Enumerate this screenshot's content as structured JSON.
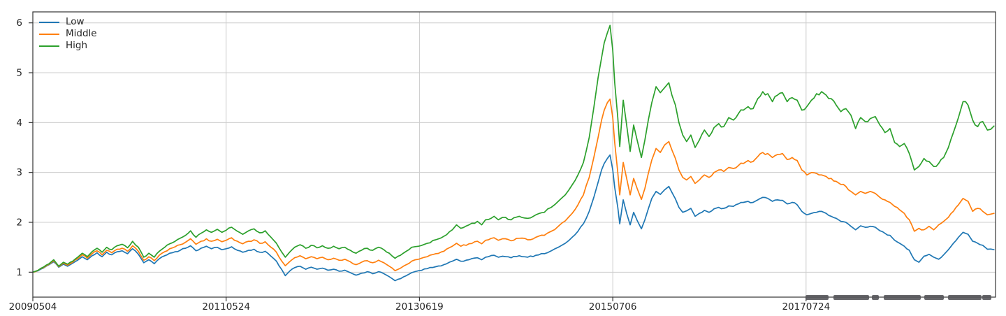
{
  "chart_data": {
    "type": "line",
    "title": "",
    "xlabel": "",
    "ylabel": "",
    "grid": true,
    "legend_position": "upper-left",
    "legend_frame": false,
    "x_axis": {
      "lim": [
        0,
        2490
      ],
      "ticks": [
        {
          "pos": 0,
          "label": "20090504"
        },
        {
          "pos": 500,
          "label": "20110524"
        },
        {
          "pos": 1000,
          "label": "20130619"
        },
        {
          "pos": 1500,
          "label": "20150706"
        },
        {
          "pos": 2000,
          "label": "20170724"
        }
      ]
    },
    "y_axis": {
      "lim": [
        0.5,
        6.22
      ],
      "ticks": [
        {
          "pos": 1,
          "label": "1"
        },
        {
          "pos": 2,
          "label": "2"
        },
        {
          "pos": 3,
          "label": "3"
        },
        {
          "pos": 4,
          "label": "4"
        },
        {
          "pos": 5,
          "label": "5"
        },
        {
          "pos": 6,
          "label": "6"
        }
      ]
    },
    "style": {
      "grid_color": "#cccccc",
      "spine_color": "#333333",
      "text_color": "#262626",
      "line_width": 1.7,
      "noise_amp_pct": 1.1
    },
    "x": [
      0,
      14,
      27,
      42,
      54,
      67,
      79,
      90,
      103,
      116,
      128,
      141,
      153,
      166,
      179,
      191,
      204,
      218,
      231,
      245,
      258,
      273,
      287,
      300,
      314,
      327,
      341,
      354,
      368,
      381,
      395,
      408,
      422,
      435,
      449,
      462,
      477,
      489,
      500,
      514,
      529,
      543,
      558,
      572,
      587,
      601,
      616,
      630,
      644,
      653,
      664,
      677,
      691,
      706,
      720,
      735,
      749,
      763,
      778,
      792,
      807,
      821,
      836,
      850,
      865,
      879,
      894,
      908,
      922,
      937,
      951,
      966,
      980,
      998,
      1020,
      1042,
      1063,
      1085,
      1096,
      1107,
      1128,
      1150,
      1161,
      1171,
      1193,
      1204,
      1215,
      1237,
      1258,
      1280,
      1301,
      1323,
      1341,
      1359,
      1377,
      1395,
      1410,
      1424,
      1439,
      1451,
      1462,
      1471,
      1478,
      1486,
      1493,
      1500,
      1505,
      1513,
      1518,
      1527,
      1536,
      1545,
      1554,
      1563,
      1574,
      1583,
      1592,
      1601,
      1612,
      1623,
      1634,
      1645,
      1653,
      1662,
      1671,
      1681,
      1691,
      1702,
      1713,
      1724,
      1737,
      1749,
      1762,
      1774,
      1787,
      1800,
      1812,
      1825,
      1838,
      1850,
      1863,
      1875,
      1888,
      1901,
      1913,
      1926,
      1939,
      1951,
      1964,
      1977,
      1989,
      2002,
      2014,
      2027,
      2040,
      2052,
      2065,
      2078,
      2090,
      2103,
      2116,
      2128,
      2141,
      2153,
      2166,
      2179,
      2191,
      2204,
      2217,
      2229,
      2242,
      2254,
      2267,
      2280,
      2292,
      2305,
      2318,
      2330,
      2343,
      2356,
      2368,
      2381,
      2394,
      2406,
      2419,
      2431,
      2444,
      2457,
      2469,
      2486
    ],
    "series": [
      {
        "name": "Low",
        "color": "#1f77b4",
        "values": [
          1.0,
          1.03,
          1.08,
          1.15,
          1.21,
          1.1,
          1.16,
          1.12,
          1.18,
          1.24,
          1.31,
          1.25,
          1.33,
          1.39,
          1.31,
          1.4,
          1.35,
          1.41,
          1.43,
          1.37,
          1.47,
          1.36,
          1.19,
          1.25,
          1.17,
          1.27,
          1.33,
          1.38,
          1.41,
          1.44,
          1.48,
          1.53,
          1.43,
          1.48,
          1.52,
          1.47,
          1.5,
          1.45,
          1.47,
          1.51,
          1.44,
          1.4,
          1.44,
          1.46,
          1.4,
          1.42,
          1.32,
          1.22,
          1.05,
          0.93,
          1.02,
          1.09,
          1.12,
          1.06,
          1.1,
          1.06,
          1.08,
          1.04,
          1.06,
          1.02,
          1.04,
          0.99,
          0.94,
          0.98,
          1.01,
          0.97,
          1.01,
          0.97,
          0.91,
          0.83,
          0.87,
          0.93,
          0.99,
          1.03,
          1.07,
          1.11,
          1.15,
          1.22,
          1.26,
          1.22,
          1.25,
          1.29,
          1.25,
          1.3,
          1.34,
          1.3,
          1.32,
          1.29,
          1.33,
          1.3,
          1.34,
          1.37,
          1.43,
          1.5,
          1.58,
          1.7,
          1.82,
          1.97,
          2.22,
          2.5,
          2.8,
          3.05,
          3.18,
          3.28,
          3.35,
          3.05,
          2.7,
          2.3,
          1.97,
          2.45,
          2.18,
          1.95,
          2.2,
          2.04,
          1.87,
          2.05,
          2.27,
          2.48,
          2.62,
          2.56,
          2.65,
          2.72,
          2.6,
          2.47,
          2.3,
          2.2,
          2.23,
          2.28,
          2.12,
          2.18,
          2.24,
          2.2,
          2.27,
          2.3,
          2.28,
          2.33,
          2.32,
          2.37,
          2.4,
          2.42,
          2.4,
          2.45,
          2.5,
          2.48,
          2.42,
          2.45,
          2.44,
          2.37,
          2.4,
          2.35,
          2.22,
          2.15,
          2.18,
          2.2,
          2.22,
          2.18,
          2.12,
          2.08,
          2.02,
          2.0,
          1.92,
          1.85,
          1.93,
          1.9,
          1.92,
          1.9,
          1.83,
          1.78,
          1.74,
          1.64,
          1.58,
          1.52,
          1.44,
          1.25,
          1.2,
          1.32,
          1.36,
          1.3,
          1.26,
          1.35,
          1.45,
          1.58,
          1.7,
          1.8,
          1.76,
          1.62,
          1.58,
          1.54,
          1.46,
          1.45
        ]
      },
      {
        "name": "Middle",
        "color": "#ff7f0e",
        "values": [
          1.0,
          1.04,
          1.09,
          1.16,
          1.23,
          1.11,
          1.18,
          1.14,
          1.2,
          1.27,
          1.35,
          1.28,
          1.37,
          1.43,
          1.35,
          1.44,
          1.39,
          1.46,
          1.48,
          1.42,
          1.53,
          1.42,
          1.24,
          1.31,
          1.23,
          1.34,
          1.41,
          1.47,
          1.51,
          1.55,
          1.6,
          1.67,
          1.56,
          1.62,
          1.67,
          1.62,
          1.66,
          1.61,
          1.64,
          1.69,
          1.62,
          1.57,
          1.62,
          1.65,
          1.58,
          1.61,
          1.5,
          1.4,
          1.22,
          1.13,
          1.21,
          1.29,
          1.33,
          1.27,
          1.31,
          1.27,
          1.3,
          1.25,
          1.28,
          1.24,
          1.26,
          1.21,
          1.15,
          1.2,
          1.23,
          1.19,
          1.24,
          1.19,
          1.12,
          1.03,
          1.08,
          1.15,
          1.22,
          1.26,
          1.31,
          1.37,
          1.42,
          1.52,
          1.58,
          1.52,
          1.57,
          1.62,
          1.57,
          1.64,
          1.69,
          1.64,
          1.67,
          1.63,
          1.68,
          1.65,
          1.7,
          1.74,
          1.82,
          1.92,
          2.03,
          2.18,
          2.35,
          2.55,
          2.9,
          3.3,
          3.7,
          4.05,
          4.25,
          4.4,
          4.47,
          4.1,
          3.6,
          3.0,
          2.55,
          3.2,
          2.88,
          2.55,
          2.88,
          2.68,
          2.46,
          2.68,
          2.98,
          3.25,
          3.48,
          3.4,
          3.55,
          3.62,
          3.45,
          3.28,
          3.05,
          2.9,
          2.85,
          2.92,
          2.78,
          2.85,
          2.95,
          2.9,
          3.0,
          3.05,
          3.02,
          3.1,
          3.08,
          3.14,
          3.18,
          3.24,
          3.22,
          3.32,
          3.4,
          3.38,
          3.3,
          3.36,
          3.38,
          3.26,
          3.3,
          3.24,
          3.05,
          2.95,
          3.0,
          2.98,
          2.95,
          2.92,
          2.88,
          2.82,
          2.76,
          2.72,
          2.62,
          2.55,
          2.62,
          2.58,
          2.62,
          2.58,
          2.5,
          2.45,
          2.4,
          2.32,
          2.25,
          2.18,
          2.05,
          1.82,
          1.88,
          1.85,
          1.92,
          1.85,
          1.95,
          2.02,
          2.1,
          2.22,
          2.35,
          2.48,
          2.42,
          2.22,
          2.28,
          2.22,
          2.15,
          2.18
        ]
      },
      {
        "name": "High",
        "color": "#2ca02c",
        "values": [
          1.0,
          1.04,
          1.1,
          1.17,
          1.25,
          1.12,
          1.2,
          1.16,
          1.22,
          1.3,
          1.38,
          1.31,
          1.41,
          1.48,
          1.4,
          1.5,
          1.45,
          1.53,
          1.56,
          1.49,
          1.62,
          1.5,
          1.3,
          1.38,
          1.3,
          1.42,
          1.5,
          1.57,
          1.62,
          1.68,
          1.74,
          1.83,
          1.7,
          1.78,
          1.85,
          1.8,
          1.86,
          1.8,
          1.84,
          1.9,
          1.82,
          1.76,
          1.83,
          1.87,
          1.79,
          1.83,
          1.7,
          1.58,
          1.4,
          1.3,
          1.4,
          1.5,
          1.55,
          1.48,
          1.54,
          1.49,
          1.53,
          1.48,
          1.52,
          1.47,
          1.5,
          1.44,
          1.38,
          1.44,
          1.48,
          1.44,
          1.5,
          1.45,
          1.38,
          1.28,
          1.34,
          1.42,
          1.5,
          1.52,
          1.58,
          1.65,
          1.72,
          1.85,
          1.95,
          1.88,
          1.95,
          2.02,
          1.95,
          2.05,
          2.12,
          2.05,
          2.1,
          2.05,
          2.12,
          2.08,
          2.15,
          2.2,
          2.3,
          2.42,
          2.55,
          2.75,
          2.95,
          3.2,
          3.7,
          4.3,
          4.9,
          5.3,
          5.6,
          5.8,
          5.95,
          5.45,
          4.8,
          4.1,
          3.52,
          4.45,
          3.95,
          3.42,
          3.95,
          3.65,
          3.3,
          3.65,
          4.05,
          4.4,
          4.72,
          4.6,
          4.7,
          4.8,
          4.55,
          4.35,
          4.0,
          3.75,
          3.62,
          3.75,
          3.5,
          3.65,
          3.85,
          3.72,
          3.9,
          3.98,
          3.92,
          4.1,
          4.05,
          4.18,
          4.25,
          4.32,
          4.28,
          4.48,
          4.62,
          4.58,
          4.42,
          4.55,
          4.6,
          4.42,
          4.5,
          4.45,
          4.25,
          4.32,
          4.45,
          4.58,
          4.62,
          4.55,
          4.48,
          4.35,
          4.22,
          4.28,
          4.15,
          3.88,
          4.1,
          4.02,
          4.08,
          4.12,
          3.95,
          3.8,
          3.88,
          3.6,
          3.52,
          3.58,
          3.38,
          3.05,
          3.12,
          3.28,
          3.22,
          3.12,
          3.18,
          3.3,
          3.5,
          3.8,
          4.1,
          4.42,
          4.35,
          4.05,
          3.92,
          4.02,
          3.85,
          3.93
        ]
      }
    ],
    "watermark_fragments": {
      "color": "#55555a",
      "y": 422,
      "height": 7,
      "segments": [
        [
          1153,
          33
        ],
        [
          1193,
          51
        ],
        [
          1248,
          10
        ],
        [
          1265,
          53
        ],
        [
          1323,
          28
        ],
        [
          1357,
          48
        ],
        [
          1406,
          13
        ]
      ]
    }
  }
}
